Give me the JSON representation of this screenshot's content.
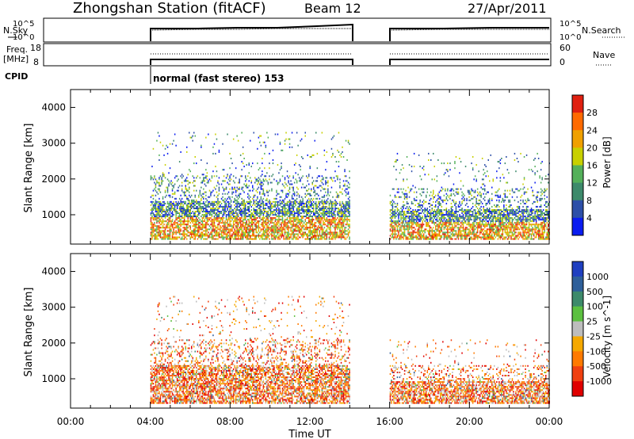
{
  "header": {
    "title": "Zhongshan Station (fitACF)",
    "beam": "Beam 12",
    "date": "27/Apr/2011"
  },
  "status_panels": {
    "nsky_label": "N.Sky",
    "nsearch_label": "N.Search",
    "freq_label_line1": "Freq.",
    "freq_label_line2": "[MHz]",
    "nave_label": "Nave",
    "cpid_label": "CPID",
    "cpid_text": "normal (fast stereo) 153",
    "nsky_ticks": [
      "10^5",
      "10^0"
    ],
    "nsearch_ticks": [
      "10^5",
      "10^0"
    ],
    "freq_ticks": [
      "18",
      "8"
    ],
    "nave_ticks": [
      "60",
      "0"
    ]
  },
  "chart_data": [
    {
      "type": "heatmap",
      "title": "",
      "xlabel": "",
      "ylabel": "Slant Range [km]",
      "colorbar_label": "Power [dB]",
      "xlim": [
        0,
        24
      ],
      "ylim": [
        180,
        4500
      ],
      "yticks": [
        1000,
        2000,
        3000,
        4000
      ],
      "colorbar_ticks": [
        "28",
        "24",
        "20",
        "16",
        "12",
        "8",
        "4"
      ],
      "colors": [
        "#0a1cf0",
        "#2d4fa8",
        "#3d8a6b",
        "#54b05a",
        "#c8d000",
        "#f0a000",
        "#ff6a00",
        "#e02010"
      ],
      "data_gaps_hours": [
        [
          0,
          4.0
        ],
        [
          14.0,
          16.0
        ]
      ],
      "echo_regions": [
        {
          "t_start": 4.0,
          "t_end": 14.0,
          "range_min": 300,
          "range_max": 3300,
          "power_dB": [
            4,
            28
          ]
        },
        {
          "t_start": 16.0,
          "t_end": 24.0,
          "range_min": 300,
          "range_max": 2700,
          "power_dB": [
            4,
            28
          ]
        }
      ]
    },
    {
      "type": "heatmap",
      "title": "",
      "xlabel": "Time UT",
      "ylabel": "Slant Range [km]",
      "colorbar_label": "Velocity [m s^-1]",
      "xlim": [
        0,
        24
      ],
      "ylim": [
        180,
        4500
      ],
      "yticks": [
        1000,
        2000,
        3000,
        4000
      ],
      "xticks": [
        "00:00",
        "04:00",
        "08:00",
        "12:00",
        "16:00",
        "20:00",
        "00:00"
      ],
      "colorbar_ticks": [
        "1000",
        "500",
        "100",
        "25",
        "-25",
        "-100",
        "-500",
        "-1000"
      ],
      "colors": [
        "#1f3fc0",
        "#2e5f9a",
        "#3d8a6b",
        "#5cc040",
        "#bdbdbd",
        "#f5a800",
        "#ff7a00",
        "#f04010",
        "#e00000"
      ],
      "data_gaps_hours": [
        [
          0,
          4.0
        ],
        [
          14.0,
          16.0
        ]
      ],
      "echo_regions": [
        {
          "t_start": 4.0,
          "t_end": 14.0,
          "range_min": 300,
          "range_max": 3300,
          "velocity_ms": [
            -1000,
            100
          ]
        },
        {
          "t_start": 16.0,
          "t_end": 24.0,
          "range_min": 300,
          "range_max": 2100,
          "velocity_ms": [
            -500,
            100
          ]
        }
      ]
    }
  ]
}
